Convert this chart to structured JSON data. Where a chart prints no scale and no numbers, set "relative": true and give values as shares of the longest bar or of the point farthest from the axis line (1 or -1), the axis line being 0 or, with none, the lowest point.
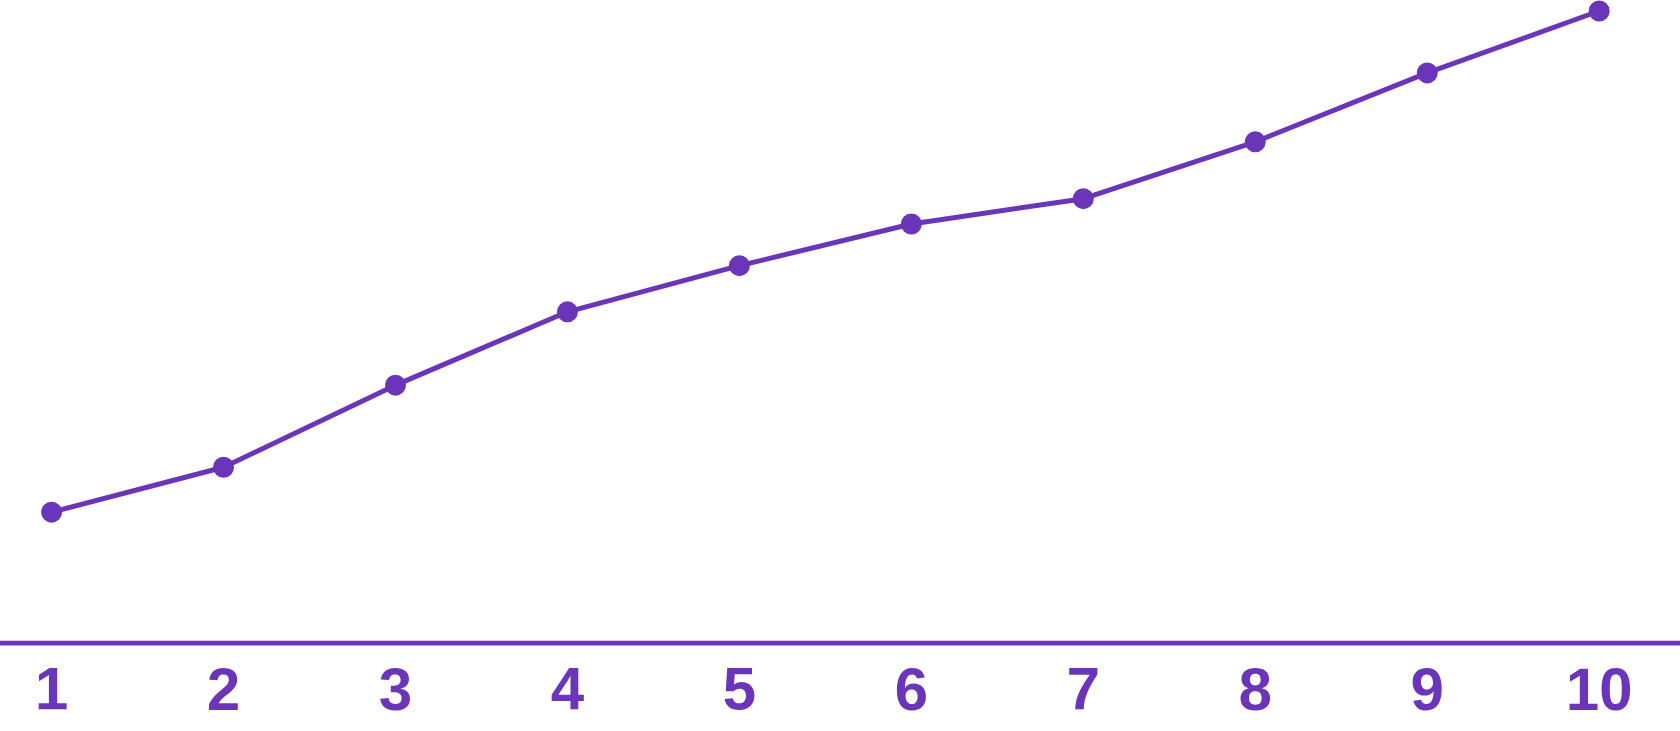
{
  "chart_data": {
    "type": "line",
    "relative": true,
    "marker": "circle",
    "line_style": "solid",
    "categories": [
      "1",
      "2",
      "3",
      "4",
      "5",
      "6",
      "7",
      "8",
      "9",
      "10"
    ],
    "series": [
      {
        "color": "#6a35b8",
        "values": [
          0.207,
          0.278,
          0.408,
          0.524,
          0.597,
          0.663,
          0.703,
          0.793,
          0.902,
          1
        ]
      }
    ]
  }
}
